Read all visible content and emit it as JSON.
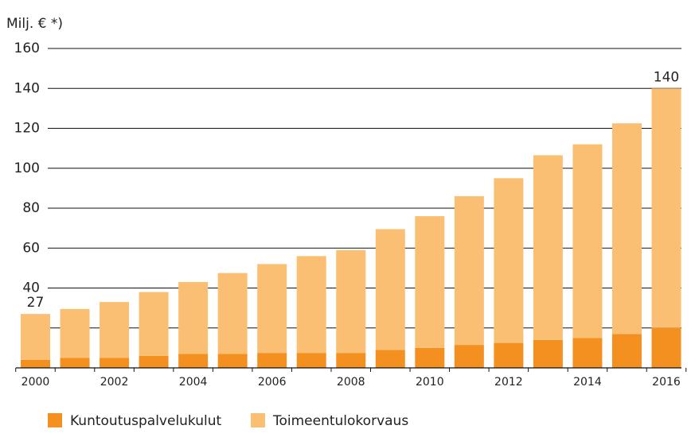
{
  "chart_data": {
    "type": "stacked_bar",
    "y_label": "Milj. € *)",
    "categories": [
      "2000",
      null,
      "2002",
      null,
      "2004",
      null,
      "2006",
      null,
      "2008",
      null,
      "2010",
      null,
      "2012",
      null,
      "2014",
      null,
      "2016"
    ],
    "series": [
      {
        "name": "Kuntoutuspalvelukulut",
        "color": "#f39020",
        "values": [
          4,
          5,
          5,
          6,
          7,
          7,
          7.5,
          7.5,
          7.5,
          9,
          10,
          11.5,
          12.5,
          14,
          15,
          17,
          20
        ]
      },
      {
        "name": "Toimeentulokorvaus",
        "color": "#fbbf73",
        "values": [
          23,
          24.5,
          28,
          32,
          36,
          40.5,
          44.5,
          48.5,
          51.5,
          60.5,
          66,
          74.5,
          82.5,
          92.5,
          97,
          105.5,
          120
        ]
      }
    ],
    "total_labels": [
      "27",
      null,
      null,
      null,
      null,
      null,
      null,
      null,
      null,
      null,
      null,
      null,
      null,
      null,
      null,
      null,
      "140"
    ],
    "ylim": [
      0,
      160
    ],
    "yticks": [
      20,
      40,
      60,
      80,
      100,
      120,
      140,
      160
    ],
    "grid": true
  }
}
